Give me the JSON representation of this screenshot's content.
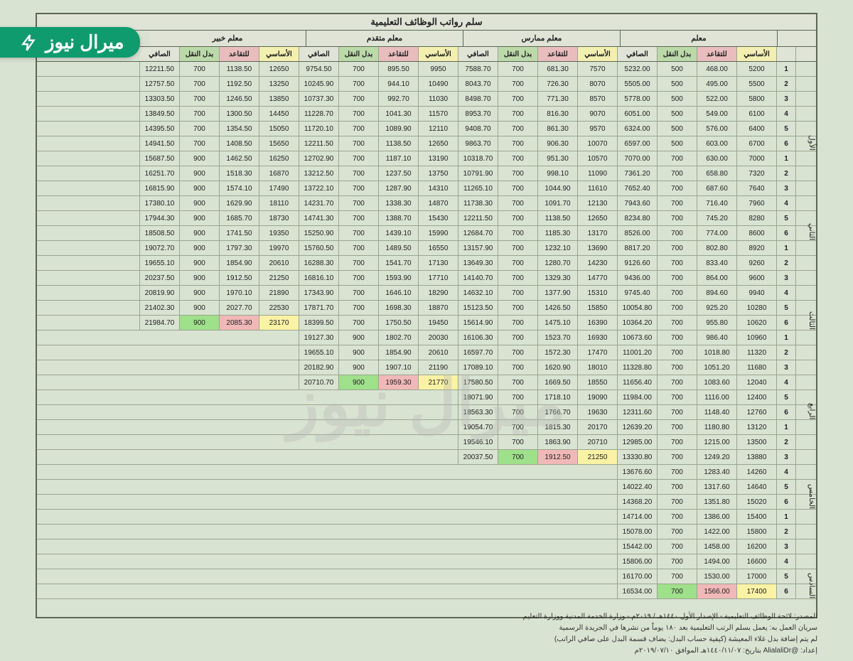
{
  "title": "سلم رواتب الوظائف التعليمية",
  "watermark": "ميرال نيوز",
  "badge": "ميرال نيوز",
  "groups": [
    "معلم",
    "معلم ممارس",
    "معلم متقدم",
    "معلم خبير"
  ],
  "col_headers": [
    "الأساسي",
    "للتقاعد",
    "بدل النقل",
    "الصافي"
  ],
  "step_header": "",
  "level_header": "",
  "col_header_colors": [
    "c-b",
    "c-r",
    "c-t",
    "c-n"
  ],
  "levels": [
    "الأول",
    "الثاني",
    "الثالث",
    "الرابع",
    "الخامس",
    "السادس"
  ],
  "widths": {
    "data": 55,
    "step": 26,
    "level": 28
  },
  "colors": {
    "border": "#5c6655",
    "bg": "#d9e3d2",
    "hdr_green": "#bcd9a9",
    "hdr_yellow": "#f3efb0",
    "hdr_red": "#e9bdbd",
    "hdr_gray": "#dfe4d6",
    "hl_green": "#9fe08a",
    "hl_red": "#f1b8b8",
    "hl_yellow": "#faf2a4",
    "badge": "#0f9b6e"
  },
  "rows": [
    {
      "lv": 0,
      "st": 1,
      "g0": [
        "5200",
        "468.00",
        "500",
        "5232.00"
      ],
      "g1": [
        "7570",
        "681.30",
        "700",
        "7588.70"
      ],
      "g2": [
        "9950",
        "895.50",
        "700",
        "9754.50"
      ],
      "g3": [
        "12650",
        "1138.50",
        "700",
        "12211.50"
      ]
    },
    {
      "lv": 0,
      "st": 2,
      "g0": [
        "5500",
        "495.00",
        "500",
        "5505.00"
      ],
      "g1": [
        "8070",
        "726.30",
        "700",
        "8043.70"
      ],
      "g2": [
        "10490",
        "944.10",
        "700",
        "10245.90"
      ],
      "g3": [
        "13250",
        "1192.50",
        "700",
        "12757.50"
      ]
    },
    {
      "lv": 0,
      "st": 3,
      "g0": [
        "5800",
        "522.00",
        "500",
        "5778.00"
      ],
      "g1": [
        "8570",
        "771.30",
        "700",
        "8498.70"
      ],
      "g2": [
        "11030",
        "992.70",
        "700",
        "10737.30"
      ],
      "g3": [
        "13850",
        "1246.50",
        "700",
        "13303.50"
      ]
    },
    {
      "lv": 0,
      "st": 4,
      "g0": [
        "6100",
        "549.00",
        "500",
        "6051.00"
      ],
      "g1": [
        "9070",
        "816.30",
        "700",
        "8953.70"
      ],
      "g2": [
        "11570",
        "1041.30",
        "700",
        "11228.70"
      ],
      "g3": [
        "14450",
        "1300.50",
        "700",
        "13849.50"
      ]
    },
    {
      "lv": 0,
      "st": 5,
      "g0": [
        "6400",
        "576.00",
        "500",
        "6324.00"
      ],
      "g1": [
        "9570",
        "861.30",
        "700",
        "9408.70"
      ],
      "g2": [
        "12110",
        "1089.90",
        "700",
        "11720.10"
      ],
      "g3": [
        "15050",
        "1354.50",
        "700",
        "14395.50"
      ]
    },
    {
      "lv": 0,
      "st": 6,
      "g0": [
        "6700",
        "603.00",
        "500",
        "6597.00"
      ],
      "g1": [
        "10070",
        "906.30",
        "700",
        "9863.70"
      ],
      "g2": [
        "12650",
        "1138.50",
        "700",
        "12211.50"
      ],
      "g3": [
        "15650",
        "1408.50",
        "700",
        "14941.50"
      ]
    },
    {
      "lv": 1,
      "st": 1,
      "g0": [
        "7000",
        "630.00",
        "700",
        "7070.00"
      ],
      "g1": [
        "10570",
        "951.30",
        "700",
        "10318.70"
      ],
      "g2": [
        "13190",
        "1187.10",
        "700",
        "12702.90"
      ],
      "g3": [
        "16250",
        "1462.50",
        "900",
        "15687.50"
      ]
    },
    {
      "lv": 1,
      "st": 2,
      "g0": [
        "7320",
        "658.80",
        "700",
        "7361.20"
      ],
      "g1": [
        "11090",
        "998.10",
        "700",
        "10791.90"
      ],
      "g2": [
        "13750",
        "1237.50",
        "700",
        "13212.50"
      ],
      "g3": [
        "16870",
        "1518.30",
        "900",
        "16251.70"
      ]
    },
    {
      "lv": 1,
      "st": 3,
      "g0": [
        "7640",
        "687.60",
        "700",
        "7652.40"
      ],
      "g1": [
        "11610",
        "1044.90",
        "700",
        "11265.10"
      ],
      "g2": [
        "14310",
        "1287.90",
        "700",
        "13722.10"
      ],
      "g3": [
        "17490",
        "1574.10",
        "900",
        "16815.90"
      ]
    },
    {
      "lv": 1,
      "st": 4,
      "g0": [
        "7960",
        "716.40",
        "700",
        "7943.60"
      ],
      "g1": [
        "12130",
        "1091.70",
        "700",
        "11738.30"
      ],
      "g2": [
        "14870",
        "1338.30",
        "700",
        "14231.70"
      ],
      "g3": [
        "18110",
        "1629.90",
        "900",
        "17380.10"
      ]
    },
    {
      "lv": 1,
      "st": 5,
      "g0": [
        "8280",
        "745.20",
        "700",
        "8234.80"
      ],
      "g1": [
        "12650",
        "1138.50",
        "700",
        "12211.50"
      ],
      "g2": [
        "15430",
        "1388.70",
        "700",
        "14741.30"
      ],
      "g3": [
        "18730",
        "1685.70",
        "900",
        "17944.30"
      ]
    },
    {
      "lv": 1,
      "st": 6,
      "g0": [
        "8600",
        "774.00",
        "700",
        "8526.00"
      ],
      "g1": [
        "13170",
        "1185.30",
        "700",
        "12684.70"
      ],
      "g2": [
        "15990",
        "1439.10",
        "700",
        "15250.90"
      ],
      "g3": [
        "19350",
        "1741.50",
        "900",
        "18508.50"
      ]
    },
    {
      "lv": 2,
      "st": 1,
      "g0": [
        "8920",
        "802.80",
        "700",
        "8817.20"
      ],
      "g1": [
        "13690",
        "1232.10",
        "700",
        "13157.90"
      ],
      "g2": [
        "16550",
        "1489.50",
        "700",
        "15760.50"
      ],
      "g3": [
        "19970",
        "1797.30",
        "900",
        "19072.70"
      ]
    },
    {
      "lv": 2,
      "st": 2,
      "g0": [
        "9260",
        "833.40",
        "700",
        "9126.60"
      ],
      "g1": [
        "14230",
        "1280.70",
        "700",
        "13649.30"
      ],
      "g2": [
        "17130",
        "1541.70",
        "700",
        "16288.30"
      ],
      "g3": [
        "20610",
        "1854.90",
        "900",
        "19655.10"
      ]
    },
    {
      "lv": 2,
      "st": 3,
      "g0": [
        "9600",
        "864.00",
        "700",
        "9436.00"
      ],
      "g1": [
        "14770",
        "1329.30",
        "700",
        "14140.70"
      ],
      "g2": [
        "17710",
        "1593.90",
        "700",
        "16816.10"
      ],
      "g3": [
        "21250",
        "1912.50",
        "900",
        "20237.50"
      ]
    },
    {
      "lv": 2,
      "st": 4,
      "g0": [
        "9940",
        "894.60",
        "700",
        "9745.40"
      ],
      "g1": [
        "15310",
        "1377.90",
        "700",
        "14632.10"
      ],
      "g2": [
        "18290",
        "1646.10",
        "700",
        "17343.90"
      ],
      "g3": [
        "21890",
        "1970.10",
        "900",
        "20819.90"
      ]
    },
    {
      "lv": 2,
      "st": 5,
      "g0": [
        "10280",
        "925.20",
        "700",
        "10054.80"
      ],
      "g1": [
        "15850",
        "1426.50",
        "700",
        "15123.50"
      ],
      "g2": [
        "18870",
        "1698.30",
        "700",
        "17871.70"
      ],
      "g3": [
        "22530",
        "2027.70",
        "900",
        "21402.30"
      ]
    },
    {
      "lv": 2,
      "st": 6,
      "g0": [
        "10620",
        "955.80",
        "700",
        "10364.20"
      ],
      "g1": [
        "16390",
        "1475.10",
        "700",
        "15614.90"
      ],
      "g2": [
        "19450",
        "1750.50",
        "700",
        "18399.50"
      ],
      "g3": [
        "23170",
        "2085.30",
        "900",
        "21984.70"
      ],
      "g3_hl": [
        "hl-y",
        "hl-r",
        "hl-g",
        ""
      ]
    },
    {
      "lv": 3,
      "st": 1,
      "g0": [
        "10960",
        "986.40",
        "700",
        "10673.60"
      ],
      "g1": [
        "16930",
        "1523.70",
        "700",
        "16106.30"
      ],
      "g2": [
        "20030",
        "1802.70",
        "900",
        "19127.30"
      ],
      "g3": null
    },
    {
      "lv": 3,
      "st": 2,
      "g0": [
        "11320",
        "1018.80",
        "700",
        "11001.20"
      ],
      "g1": [
        "17470",
        "1572.30",
        "700",
        "16597.70"
      ],
      "g2": [
        "20610",
        "1854.90",
        "900",
        "19655.10"
      ],
      "g3": null
    },
    {
      "lv": 3,
      "st": 3,
      "g0": [
        "11680",
        "1051.20",
        "700",
        "11328.80"
      ],
      "g1": [
        "18010",
        "1620.90",
        "700",
        "17089.10"
      ],
      "g2": [
        "21190",
        "1907.10",
        "900",
        "20182.90"
      ],
      "g3": null
    },
    {
      "lv": 3,
      "st": 4,
      "g0": [
        "12040",
        "1083.60",
        "700",
        "11656.40"
      ],
      "g1": [
        "18550",
        "1669.50",
        "700",
        "17580.50"
      ],
      "g2": [
        "21770",
        "1959.30",
        "900",
        "20710.70"
      ],
      "g2_hl": [
        "hl-y",
        "hl-r",
        "hl-g",
        ""
      ],
      "g3": null
    },
    {
      "lv": 3,
      "st": 5,
      "g0": [
        "12400",
        "1116.00",
        "700",
        "11984.00"
      ],
      "g1": [
        "19090",
        "1718.10",
        "700",
        "18071.90"
      ],
      "g2": null,
      "g3": null
    },
    {
      "lv": 3,
      "st": 6,
      "g0": [
        "12760",
        "1148.40",
        "700",
        "12311.60"
      ],
      "g1": [
        "19630",
        "1766.70",
        "700",
        "18563.30"
      ],
      "g2": null,
      "g3": null
    },
    {
      "lv": 4,
      "st": 1,
      "g0": [
        "13120",
        "1180.80",
        "700",
        "12639.20"
      ],
      "g1": [
        "20170",
        "1815.30",
        "700",
        "19054.70"
      ],
      "g2": null,
      "g3": null
    },
    {
      "lv": 4,
      "st": 2,
      "g0": [
        "13500",
        "1215.00",
        "700",
        "12985.00"
      ],
      "g1": [
        "20710",
        "1863.90",
        "700",
        "19546.10"
      ],
      "g2": null,
      "g3": null
    },
    {
      "lv": 4,
      "st": 3,
      "g0": [
        "13880",
        "1249.20",
        "700",
        "13330.80"
      ],
      "g1": [
        "21250",
        "1912.50",
        "700",
        "20037.50"
      ],
      "g1_hl": [
        "hl-y",
        "hl-r",
        "hl-g",
        ""
      ],
      "g2": null,
      "g3": null
    },
    {
      "lv": 4,
      "st": 4,
      "g0": [
        "14260",
        "1283.40",
        "700",
        "13676.60"
      ],
      "g1": null,
      "g2": null,
      "g3": null
    },
    {
      "lv": 4,
      "st": 5,
      "g0": [
        "14640",
        "1317.60",
        "700",
        "14022.40"
      ],
      "g1": null,
      "g2": null,
      "g3": null
    },
    {
      "lv": 4,
      "st": 6,
      "g0": [
        "15020",
        "1351.80",
        "700",
        "14368.20"
      ],
      "g1": null,
      "g2": null,
      "g3": null
    },
    {
      "lv": 5,
      "st": 1,
      "g0": [
        "15400",
        "1386.00",
        "700",
        "14714.00"
      ],
      "g1": null,
      "g2": null,
      "g3": null
    },
    {
      "lv": 5,
      "st": 2,
      "g0": [
        "15800",
        "1422.00",
        "700",
        "15078.00"
      ],
      "g1": null,
      "g2": null,
      "g3": null
    },
    {
      "lv": 5,
      "st": 3,
      "g0": [
        "16200",
        "1458.00",
        "700",
        "15442.00"
      ],
      "g1": null,
      "g2": null,
      "g3": null
    },
    {
      "lv": 5,
      "st": 4,
      "g0": [
        "16600",
        "1494.00",
        "700",
        "15806.00"
      ],
      "g1": null,
      "g2": null,
      "g3": null
    },
    {
      "lv": 5,
      "st": 5,
      "g0": [
        "17000",
        "1530.00",
        "700",
        "16170.00"
      ],
      "g1": null,
      "g2": null,
      "g3": null
    },
    {
      "lv": 5,
      "st": 6,
      "g0": [
        "17400",
        "1566.00",
        "700",
        "16534.00"
      ],
      "g0_hl": [
        "hl-y",
        "hl-r",
        "hl-g",
        ""
      ],
      "g1": null,
      "g2": null,
      "g3": null
    }
  ],
  "footer": [
    "المصدر: لائحة الوظائف التعليمية - الإصدار الأول ١٤٤٠هـ / ٢٠١٩م - وزارة الخدمة المدنية ووزارة التعليم",
    "سريان العمل به: يعمل بسلم الرتب التعليمية بعد ١٨٠ يوماً من نشرها في الجريدة الرسمية",
    "لم يتم إضافة بدل غلاء المعيشة (كيفية حساب البدل: يضاف قسمة البدل على صافي الراتب)",
    "إعداد: @AlialaliDr   بتاريخ: ١٤٤٠/١١/٠٧هـ الموافق ٢٠١٩/٠٧/١٠م"
  ]
}
